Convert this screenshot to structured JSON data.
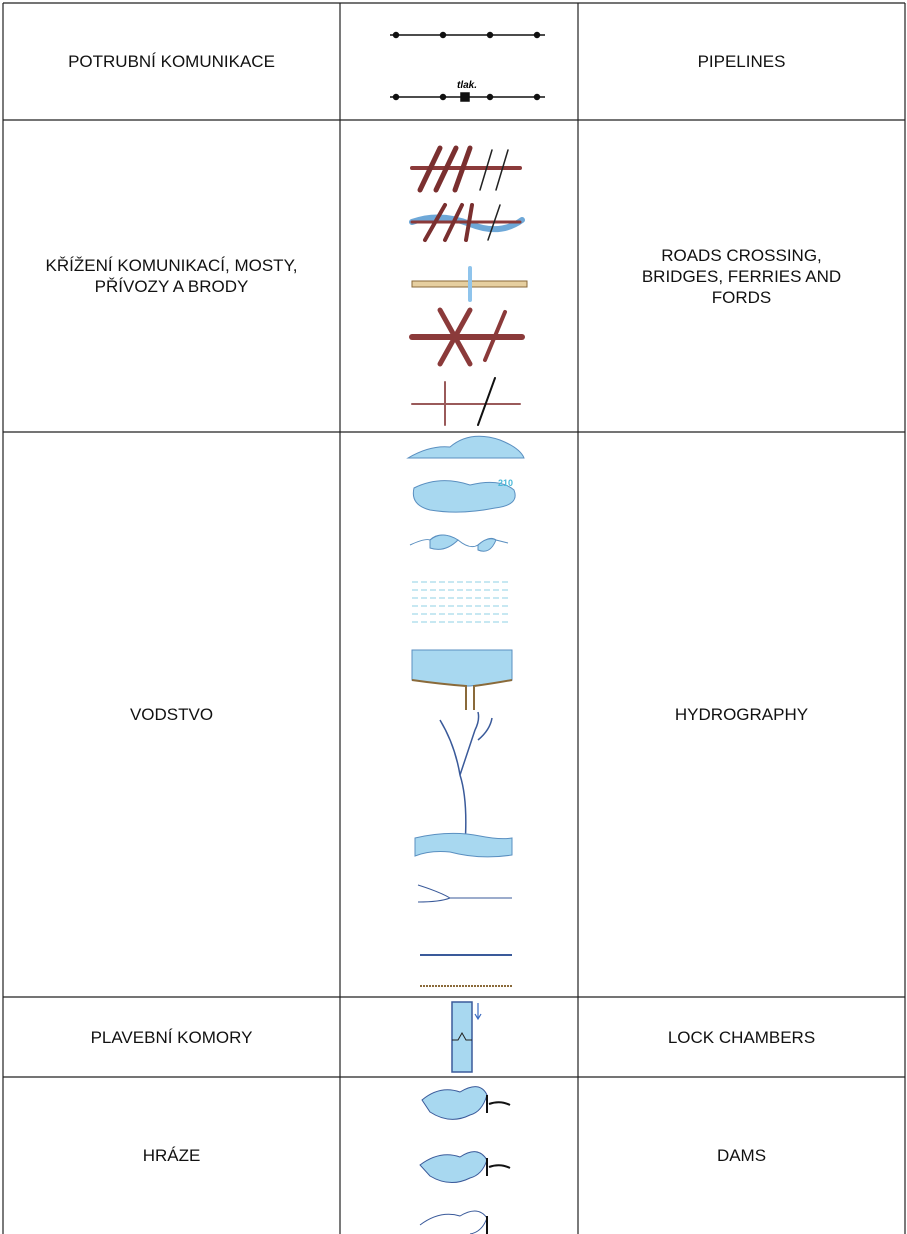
{
  "table": {
    "rows": [
      {
        "czech": "POTRUBNÍ KOMUNIKACE",
        "english": "PIPELINES",
        "symbol_texts": [
          "tlak."
        ]
      },
      {
        "czech": "KŘÍŽENÍ KOMUNIKACÍ, MOSTY, PŘÍVOZY A BRODY",
        "english": "ROADS CROSSING, BRIDGES, FERRIES AND FORDS"
      },
      {
        "czech": "VODSTVO",
        "english": "HYDROGRAPHY",
        "symbol_texts": [
          "210"
        ]
      },
      {
        "czech": "PLAVEBNÍ KOMORY",
        "english": "LOCK CHAMBERS"
      },
      {
        "czech": "HRÁZE",
        "english": "DAMS"
      }
    ]
  }
}
